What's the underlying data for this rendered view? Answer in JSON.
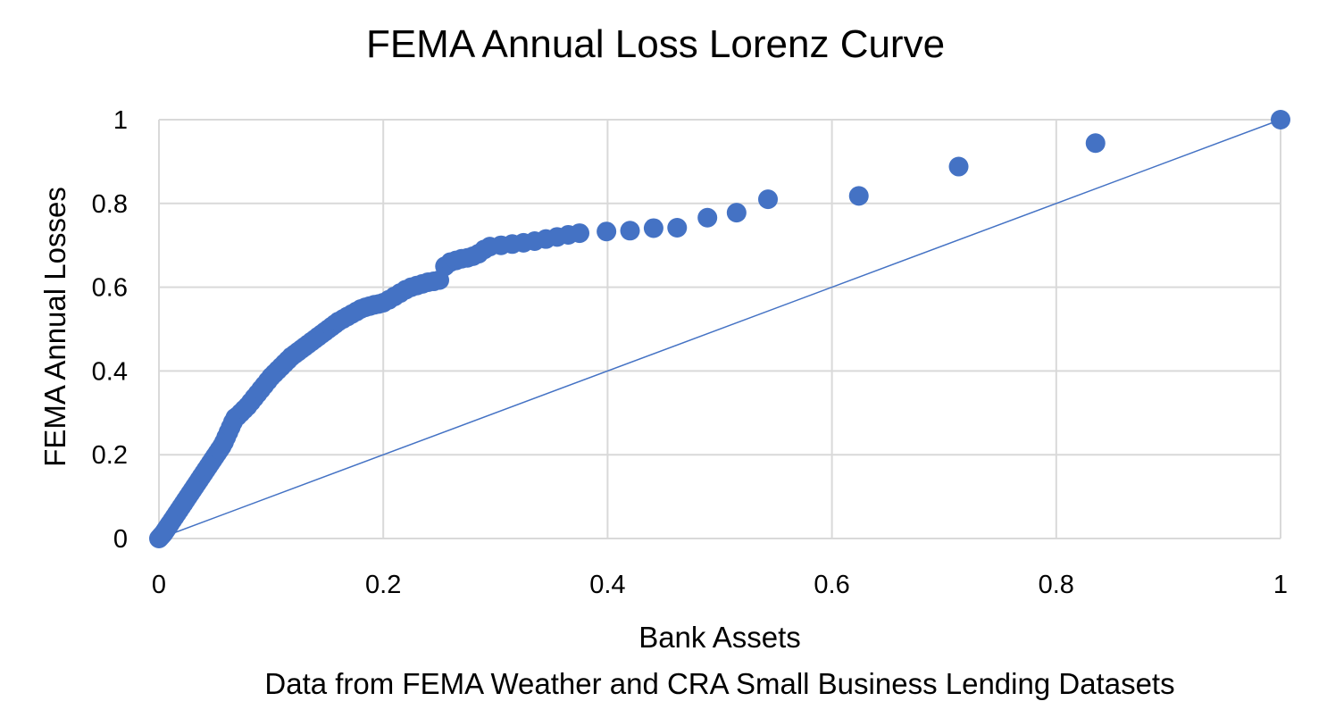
{
  "chart_data": {
    "type": "scatter",
    "title": "FEMA Annual Loss Lorenz Curve",
    "xlabel": "Bank Assets",
    "ylabel": "FEMA Annual Losses",
    "caption": "Data from FEMA Weather and CRA Small Business Lending Datasets",
    "xlim": [
      0,
      1
    ],
    "ylim": [
      0,
      1
    ],
    "x_ticks": [
      0,
      0.2,
      0.4,
      0.6,
      0.8,
      1
    ],
    "x_tick_labels": [
      "0",
      "0.2",
      "0.4",
      "0.6",
      "0.8",
      "1"
    ],
    "y_ticks": [
      0,
      0.2,
      0.4,
      0.6,
      0.8,
      1
    ],
    "y_tick_labels": [
      "0",
      "0.2",
      "0.4",
      "0.6",
      "0.8",
      "1"
    ],
    "grid": true,
    "legend": "none",
    "marker_color": "#4472C4",
    "reference_line": {
      "x": [
        0,
        1
      ],
      "y": [
        0,
        1
      ],
      "color": "#4472C4"
    },
    "series": [
      {
        "x": [
          0,
          0.001,
          0.002,
          0.003,
          0.004,
          0.005,
          0.006,
          0.007,
          0.008,
          0.009,
          0.01,
          0.012,
          0.014,
          0.016,
          0.018,
          0.02,
          0.022,
          0.024,
          0.026,
          0.028,
          0.03,
          0.032,
          0.034,
          0.036,
          0.038,
          0.04,
          0.042,
          0.044,
          0.046,
          0.048,
          0.05,
          0.052,
          0.054,
          0.056,
          0.058,
          0.06,
          0.062,
          0.064,
          0.066,
          0.068,
          0.07,
          0.073,
          0.076,
          0.079,
          0.082,
          0.085,
          0.088,
          0.091,
          0.094,
          0.097,
          0.1,
          0.103,
          0.106,
          0.109,
          0.112,
          0.115,
          0.118,
          0.121,
          0.124,
          0.127,
          0.13,
          0.133,
          0.136,
          0.139,
          0.142,
          0.145,
          0.148,
          0.151,
          0.154,
          0.157,
          0.16,
          0.164,
          0.168,
          0.172,
          0.176,
          0.18,
          0.184,
          0.188,
          0.192,
          0.196,
          0.2,
          0.205,
          0.21,
          0.215,
          0.22,
          0.225,
          0.23,
          0.235,
          0.24,
          0.245,
          0.25,
          0.255,
          0.26,
          0.265,
          0.27,
          0.275,
          0.28,
          0.285,
          0.29,
          0.295,
          0.305,
          0.315,
          0.325,
          0.335,
          0.345,
          0.355,
          0.365,
          0.375,
          0.399,
          0.42,
          0.441,
          0.462,
          0.489,
          0.515,
          0.543,
          0.624,
          0.713,
          0.835,
          1.0
        ],
        "y": [
          0,
          0.003,
          0.006,
          0.009,
          0.012,
          0.016,
          0.02,
          0.024,
          0.028,
          0.032,
          0.036,
          0.044,
          0.052,
          0.06,
          0.068,
          0.076,
          0.084,
          0.092,
          0.1,
          0.108,
          0.116,
          0.124,
          0.132,
          0.14,
          0.148,
          0.156,
          0.164,
          0.172,
          0.18,
          0.188,
          0.196,
          0.204,
          0.212,
          0.22,
          0.23,
          0.242,
          0.254,
          0.266,
          0.278,
          0.288,
          0.292,
          0.3,
          0.308,
          0.316,
          0.326,
          0.336,
          0.346,
          0.356,
          0.366,
          0.376,
          0.386,
          0.394,
          0.402,
          0.41,
          0.418,
          0.426,
          0.434,
          0.44,
          0.446,
          0.452,
          0.458,
          0.464,
          0.47,
          0.476,
          0.482,
          0.488,
          0.494,
          0.5,
          0.506,
          0.512,
          0.518,
          0.524,
          0.53,
          0.536,
          0.542,
          0.548,
          0.552,
          0.555,
          0.558,
          0.56,
          0.563,
          0.57,
          0.578,
          0.586,
          0.594,
          0.6,
          0.604,
          0.608,
          0.612,
          0.614,
          0.617,
          0.65,
          0.66,
          0.664,
          0.668,
          0.67,
          0.674,
          0.68,
          0.69,
          0.697,
          0.7,
          0.703,
          0.706,
          0.71,
          0.715,
          0.72,
          0.725,
          0.729,
          0.733,
          0.735,
          0.741,
          0.742,
          0.766,
          0.778,
          0.81,
          0.818,
          0.888,
          0.944,
          1.0
        ]
      }
    ]
  }
}
